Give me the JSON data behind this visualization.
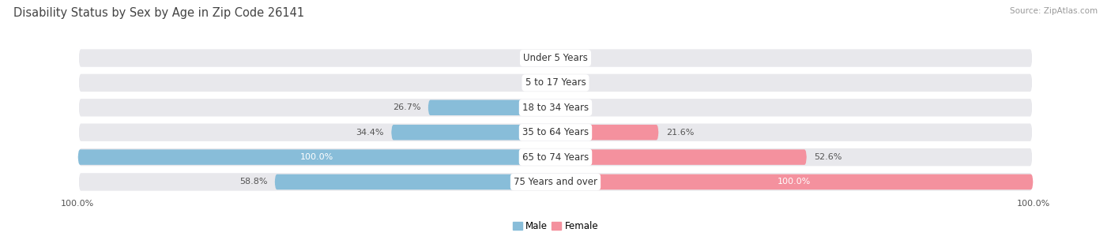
{
  "title": "Disability Status by Sex by Age in Zip Code 26141",
  "source": "Source: ZipAtlas.com",
  "categories": [
    "Under 5 Years",
    "5 to 17 Years",
    "18 to 34 Years",
    "35 to 64 Years",
    "65 to 74 Years",
    "75 Years and over"
  ],
  "male_values": [
    0.0,
    0.0,
    26.7,
    34.4,
    100.0,
    58.8
  ],
  "female_values": [
    0.0,
    0.0,
    0.0,
    21.6,
    52.6,
    100.0
  ],
  "male_color": "#88BDD9",
  "female_color": "#F4919E",
  "bar_bg_color": "#E8E8EC",
  "max_value": 100.0,
  "fig_bg_color": "#FFFFFF",
  "title_fontsize": 10.5,
  "label_fontsize": 8,
  "category_fontsize": 8.5,
  "source_fontsize": 7.5,
  "legend_fontsize": 8.5
}
